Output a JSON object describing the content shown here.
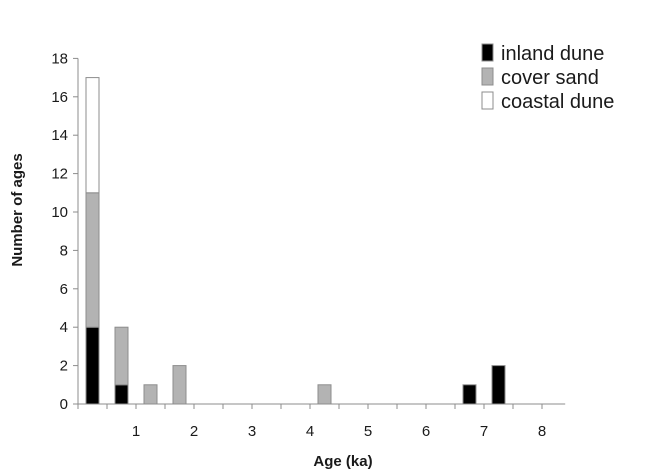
{
  "chart_data": {
    "type": "bar",
    "stacked": true,
    "xlabel": "Age (ka)",
    "ylabel": "Number of ages",
    "x_ticks": [
      1,
      2,
      3,
      4,
      5,
      6,
      7,
      8
    ],
    "ylim": [
      0,
      18
    ],
    "y_ticks": [
      0,
      2,
      4,
      6,
      8,
      10,
      12,
      14,
      16,
      18
    ],
    "legend_position": "top-right",
    "x": [
      0.25,
      0.75,
      1.25,
      1.75,
      4.25,
      6.75,
      7.25
    ],
    "series": [
      {
        "name": "inland dune",
        "color": "#000000",
        "values": [
          4,
          1,
          0,
          0,
          0,
          1,
          2
        ]
      },
      {
        "name": "cover sand",
        "color": "#b3b3b3",
        "values": [
          7,
          3,
          1,
          2,
          1,
          0,
          0
        ]
      },
      {
        "name": "coastal dune",
        "color": "#ffffff",
        "values": [
          6,
          0,
          0,
          0,
          0,
          0,
          0
        ]
      }
    ]
  }
}
